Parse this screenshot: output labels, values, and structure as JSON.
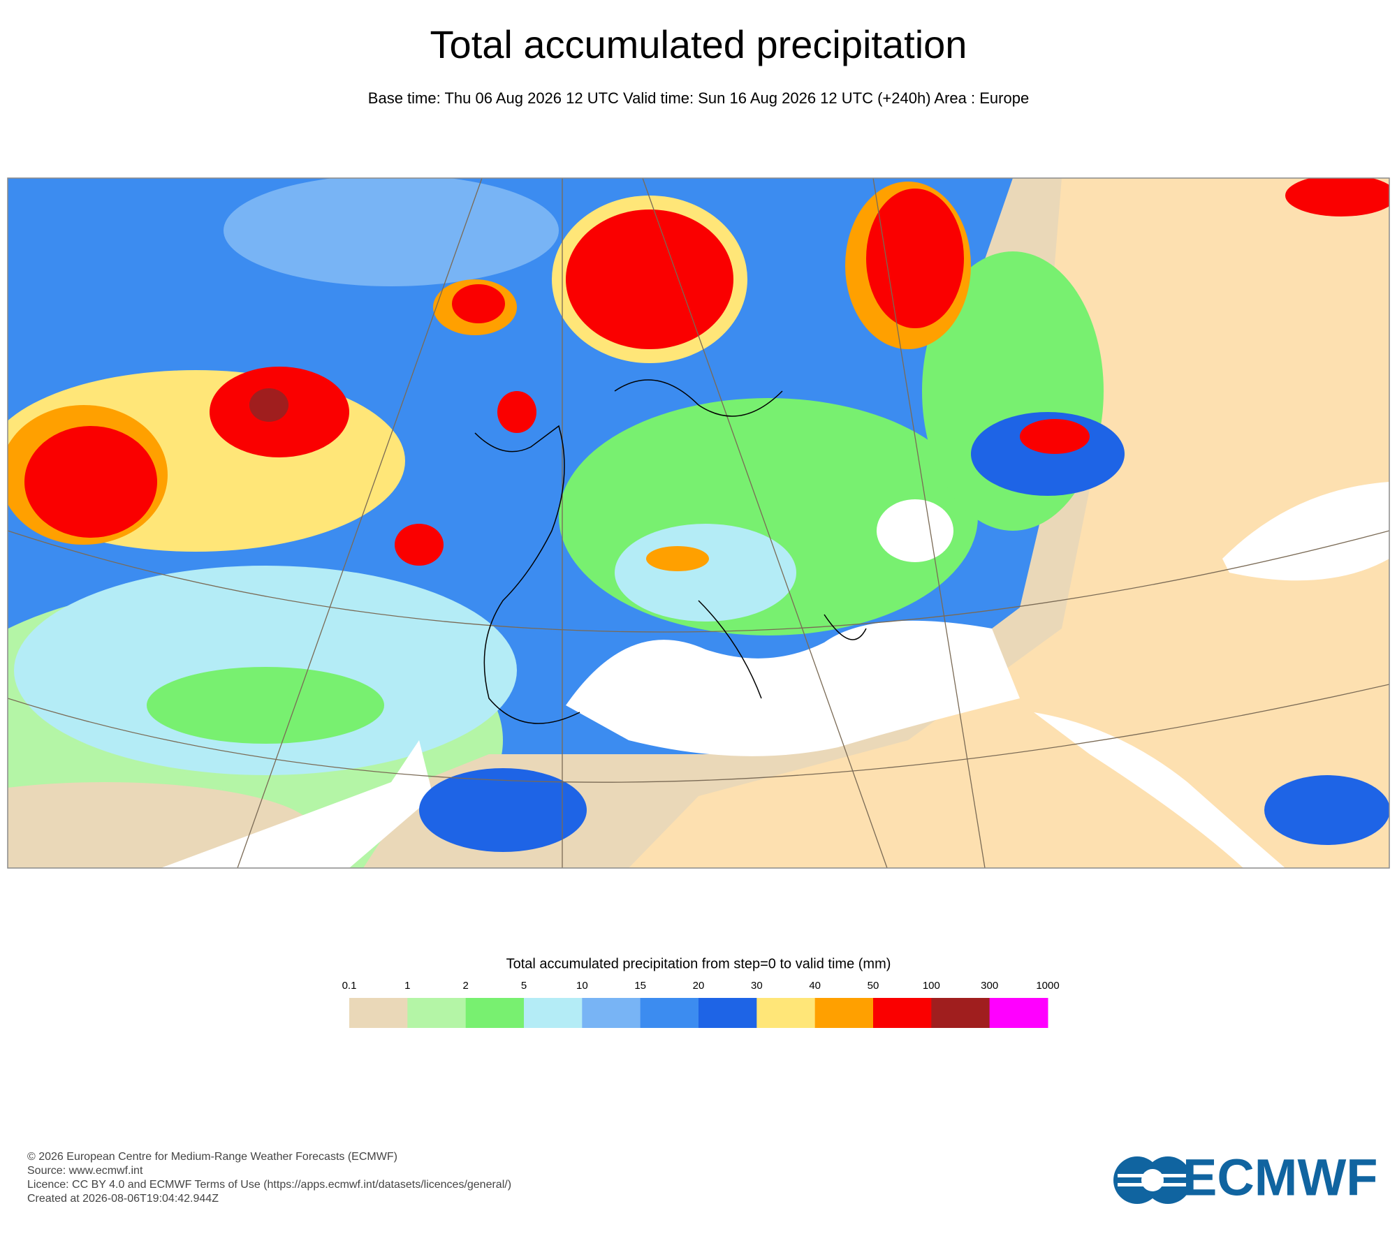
{
  "header": {
    "title": "Total accumulated precipitation",
    "subtitle": "Base time: Thu 06 Aug 2026 12 UTC Valid time: Sun 16 Aug 2026 12 UTC (+240h) Area : Europe"
  },
  "colorbar": {
    "title": "Total accumulated precipitation from step=0 to valid time (mm)",
    "levels": [
      0.1,
      1,
      2,
      5,
      10,
      15,
      20,
      30,
      40,
      50,
      100,
      300,
      1000
    ],
    "colors": [
      "#ead8b8",
      "#b4f5a6",
      "#78f070",
      "#b4ecf6",
      "#78b4f5",
      "#3c8cf0",
      "#1e64e6",
      "#ffe678",
      "#ffa000",
      "#fa0000",
      "#a01e1e",
      "#ff00ff"
    ]
  },
  "footer": {
    "lines": [
      "© 2026 European Centre for Medium-Range Weather Forecasts (ECMWF)",
      "Source: www.ecmwf.int",
      "Licence: CC BY 4.0 and ECMWF Terms of Use (https://apps.ecmwf.int/datasets/licences/general/)",
      "Created at 2026-08-06T19:04:42.944Z"
    ]
  },
  "logo": {
    "text": "ECMWF"
  }
}
